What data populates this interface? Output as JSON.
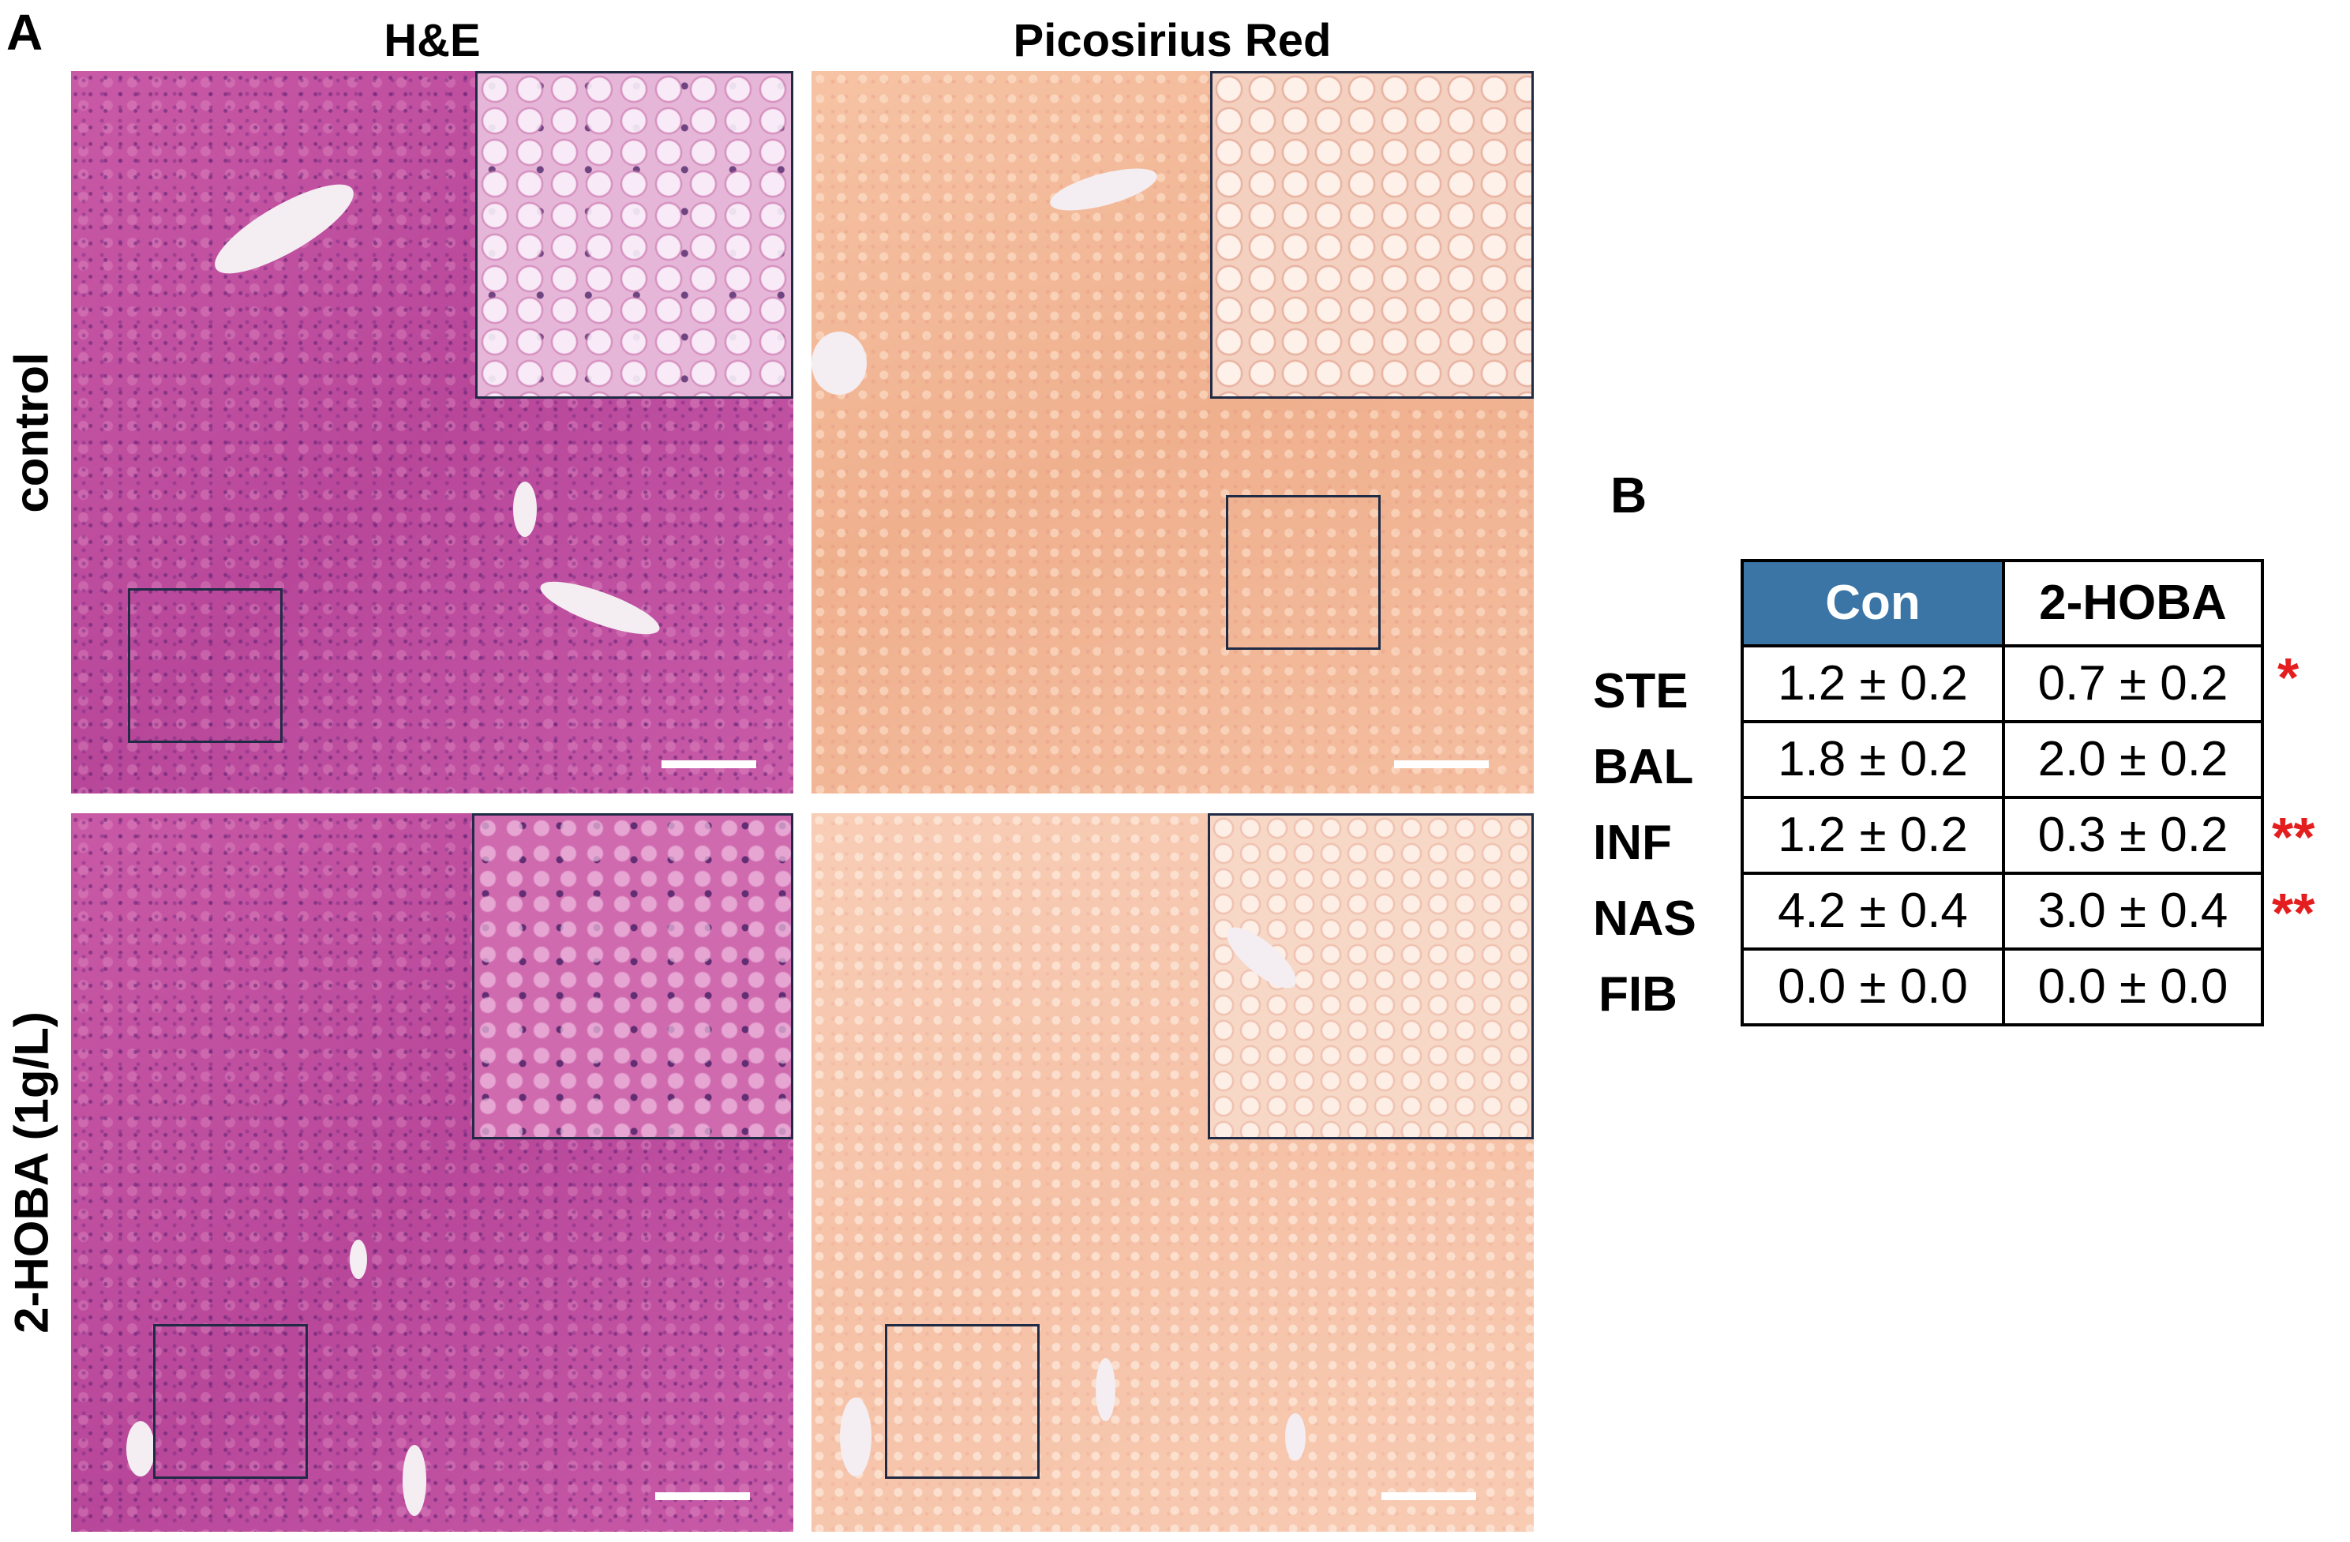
{
  "panel_a": {
    "letter": "A",
    "columns": [
      "H&E",
      "Picosirius Red"
    ],
    "rows": [
      "control",
      "2-HOBA (1g/L)"
    ]
  },
  "panel_b": {
    "letter": "B",
    "headers": [
      "Con",
      "2-HOBA"
    ],
    "rows": [
      {
        "label": "STE",
        "con": "1.2 ± 0.2",
        "hoba": "0.7 ± 0.2",
        "sig": "*"
      },
      {
        "label": "BAL",
        "con": "1.8 ± 0.2",
        "hoba": "2.0 ± 0.2",
        "sig": ""
      },
      {
        "label": "INF",
        "con": "1.2 ± 0.2",
        "hoba": "0.3 ± 0.2",
        "sig": "**"
      },
      {
        "label": "NAS",
        "con": "4.2 ± 0.4",
        "hoba": "3.0 ± 0.4",
        "sig": "**"
      },
      {
        "label": "FIB",
        "con": "0.0 ± 0.0",
        "hoba": "0.0 ± 0.0",
        "sig": ""
      }
    ],
    "header_color": "#3a75a6",
    "significance_color": "#e41e1e"
  },
  "micrograph_colors": {
    "he": "#c2509e",
    "picosirius": "#f2b596"
  }
}
